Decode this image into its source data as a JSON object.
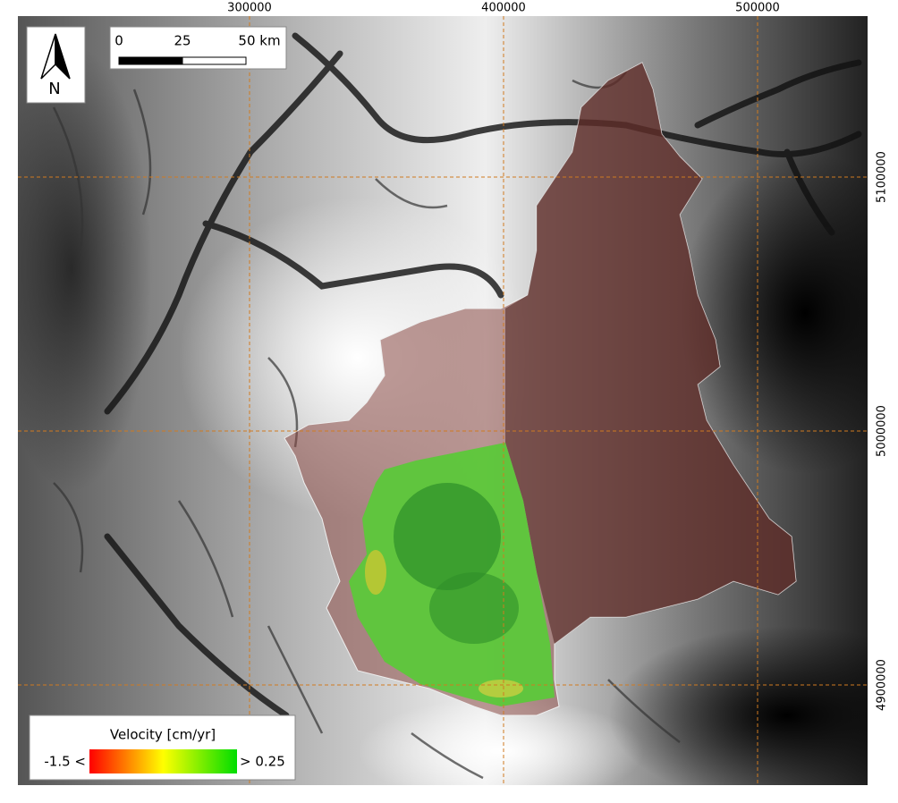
{
  "map": {
    "grid": {
      "x_labels": [
        "300000",
        "400000",
        "500000"
      ],
      "y_labels": [
        "5100000",
        "5000000",
        "4900000"
      ]
    },
    "north_arrow": {
      "label": "N"
    },
    "scale_bar": {
      "labels": [
        "0",
        "25",
        "50 km"
      ]
    },
    "legend": {
      "title": "Velocity [cm/yr]",
      "min_label": "-1.5 <",
      "max_label": "> 0.25"
    }
  }
}
